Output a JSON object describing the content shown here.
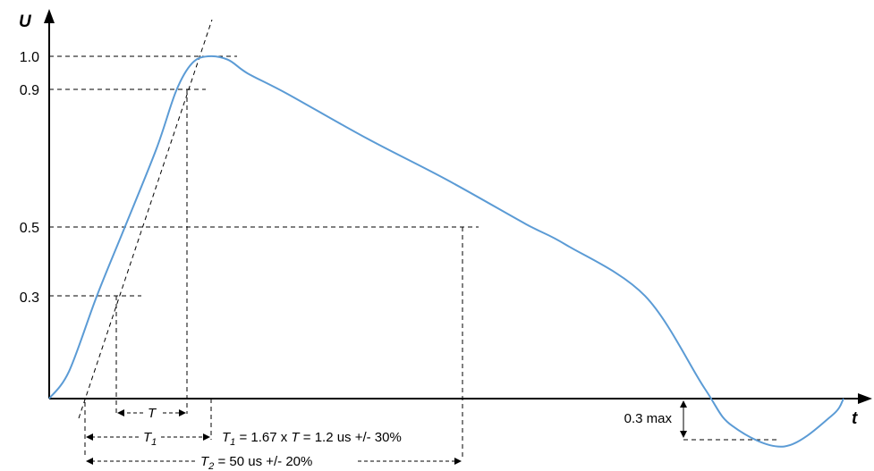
{
  "chart_data": {
    "type": "line",
    "title": "",
    "xlabel": "t",
    "ylabel": "U",
    "yticks": [
      "1.0",
      "0.9",
      "0.5",
      "0.3"
    ],
    "series": [
      {
        "color": "#5b9bd5",
        "x": [
          0,
          0.05,
          0.12,
          0.19,
          0.27,
          0.32,
          0.36,
          0.4,
          0.45,
          0.5,
          0.6,
          0.8,
          1.0,
          1.2,
          1.3,
          1.5,
          1.65,
          1.72,
          1.85,
          1.97,
          2.0
        ],
        "y": [
          0,
          0.08,
          0.3,
          0.5,
          0.73,
          0.9,
          0.98,
          1.0,
          0.99,
          0.95,
          0.89,
          0.76,
          0.64,
          0.51,
          0.45,
          0.3,
          0.03,
          -0.08,
          -0.14,
          -0.05,
          0
        ]
      }
    ],
    "annotations": {
      "T": "T",
      "T1": "T",
      "T1_sub": "1",
      "T1_formula_prefix": "T",
      "T1_formula_sub": "1",
      "T1_formula_mid": " = 1.67 x ",
      "T1_formula_T": "T",
      "T1_formula_rest": " = 1.2 us +/- 30%",
      "T2": "T",
      "T2_sub": "2",
      "T2_rest": "  = 50 us +/- 20%",
      "undershoot": "0.3 max"
    },
    "grid": false,
    "legend": "none"
  }
}
